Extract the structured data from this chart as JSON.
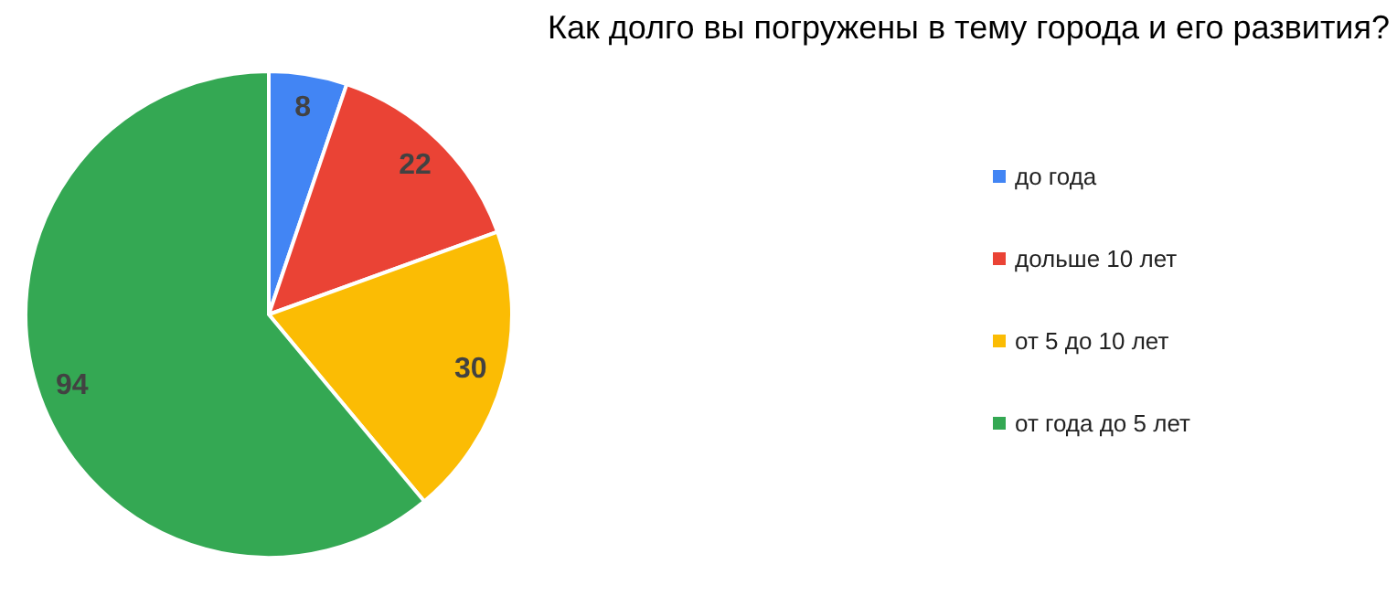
{
  "chart_data": {
    "type": "pie",
    "title": "Как долго вы погружены в тему города и его развития?",
    "categories": [
      "до года",
      "дольше 10 лет",
      "от 5 до 10 лет",
      "от года до 5 лет"
    ],
    "values": [
      8,
      22,
      30,
      94
    ],
    "colors": [
      "#4285f4",
      "#ea4335",
      "#fbbc04",
      "#34a853"
    ],
    "data_labels": true,
    "legend": "right"
  }
}
